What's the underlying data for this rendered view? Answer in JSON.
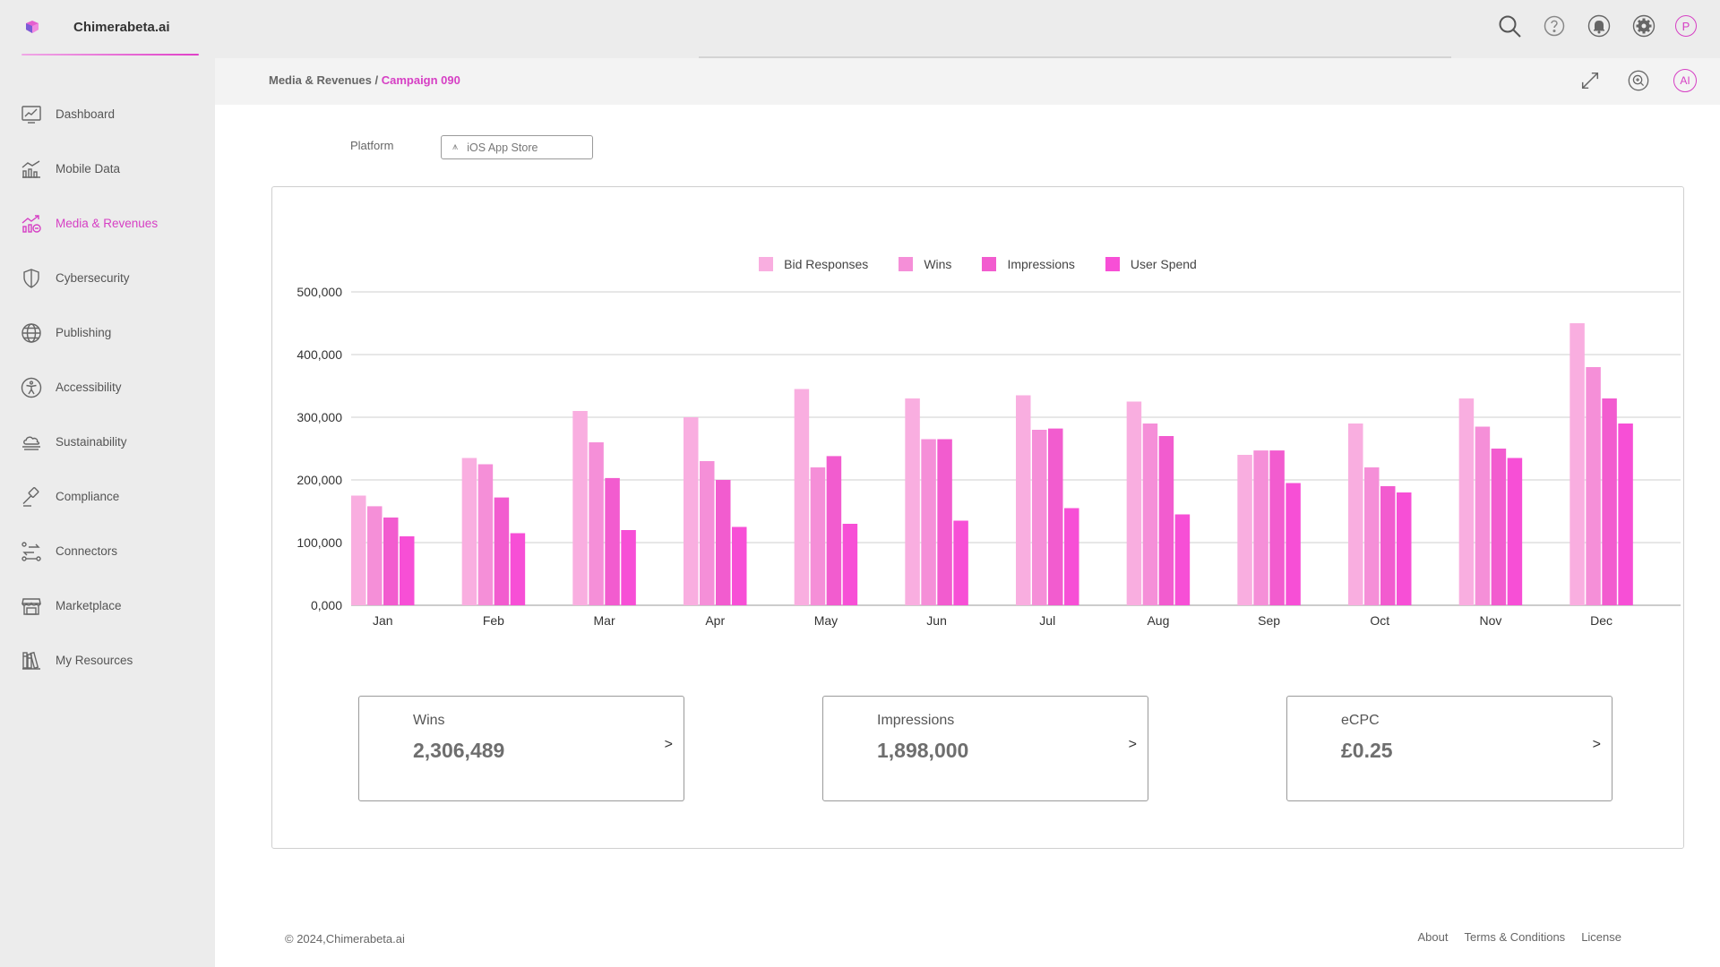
{
  "app": {
    "name": "Chimerabeta.ai"
  },
  "sidebar": {
    "items": [
      {
        "label": "Dashboard",
        "icon": "dashboard-chart-icon",
        "active": false
      },
      {
        "label": "Mobile Data",
        "icon": "bar-chart-icon",
        "active": false
      },
      {
        "label": "Media & Revenues",
        "icon": "trend-chart-icon",
        "active": true
      },
      {
        "label": "Cybersecurity",
        "icon": "shield-icon",
        "active": false
      },
      {
        "label": "Publishing",
        "icon": "globe-icon",
        "active": false
      },
      {
        "label": "Accessibility",
        "icon": "accessibility-icon",
        "active": false
      },
      {
        "label": "Sustainability",
        "icon": "cloud-icon",
        "active": false
      },
      {
        "label": "Compliance",
        "icon": "gavel-icon",
        "active": false
      },
      {
        "label": "Connectors",
        "icon": "connectors-icon",
        "active": false
      },
      {
        "label": "Marketplace",
        "icon": "store-icon",
        "active": false
      },
      {
        "label": "My Resources",
        "icon": "books-icon",
        "active": false
      }
    ]
  },
  "topbar": {
    "icons": [
      "search-icon",
      "help-icon",
      "bell-icon",
      "gear-icon"
    ],
    "avatar_initial": "P"
  },
  "breadcrumb": {
    "parent": "Media & Revenues",
    "separator": " / ",
    "current": "Campaign 090"
  },
  "crumb_tools": {
    "ai_label": "AI"
  },
  "filter": {
    "label": "Platform",
    "value": "iOS App Store"
  },
  "chart_data": {
    "type": "bar",
    "categories": [
      "Jan",
      "Feb",
      "Mar",
      "Apr",
      "May",
      "Jun",
      "Jul",
      "Aug",
      "Sep",
      "Oct",
      "Nov",
      "Dec"
    ],
    "series": [
      {
        "name": "Bid Responses",
        "color": "#f9aee0",
        "values": [
          175000,
          235000,
          310000,
          300000,
          345000,
          330000,
          335000,
          325000,
          240000,
          290000,
          330000,
          450000
        ]
      },
      {
        "name": "Wins",
        "color": "#f58fd8",
        "values": [
          158000,
          225000,
          260000,
          230000,
          220000,
          265000,
          280000,
          290000,
          247000,
          220000,
          285000,
          380000
        ]
      },
      {
        "name": "Impressions",
        "color": "#f25ccf",
        "values": [
          140000,
          172000,
          203000,
          200000,
          238000,
          265000,
          282000,
          270000,
          247000,
          190000,
          250000,
          330000
        ]
      },
      {
        "name": "User Spend",
        "color": "#f74fd6",
        "values": [
          110000,
          115000,
          120000,
          125000,
          130000,
          135000,
          155000,
          145000,
          195000,
          180000,
          235000,
          290000
        ]
      }
    ],
    "ylim": [
      0,
      500000
    ],
    "yticks": [
      0,
      100000,
      200000,
      300000,
      400000,
      500000
    ],
    "ytick_labels": [
      "0,000",
      "100,000",
      "200,000",
      "300,000",
      "400,000",
      "500,000"
    ],
    "grid": true,
    "legend_position": "top-center",
    "title": "",
    "xlabel": "",
    "ylabel": ""
  },
  "kpis": [
    {
      "label": "Wins",
      "value": "2,306,489",
      "arrow": ">"
    },
    {
      "label": "Impressions",
      "value": "1,898,000",
      "arrow": ">"
    },
    {
      "label": "eCPC",
      "value": "£0.25",
      "arrow": ">"
    }
  ],
  "footer": {
    "copyright": "© 2024,Chimerabeta.ai",
    "links": [
      "About",
      "Terms & Conditions",
      "License"
    ]
  },
  "colors": {
    "accent": "#d63fc4",
    "sidebar_bg": "#ececec"
  }
}
